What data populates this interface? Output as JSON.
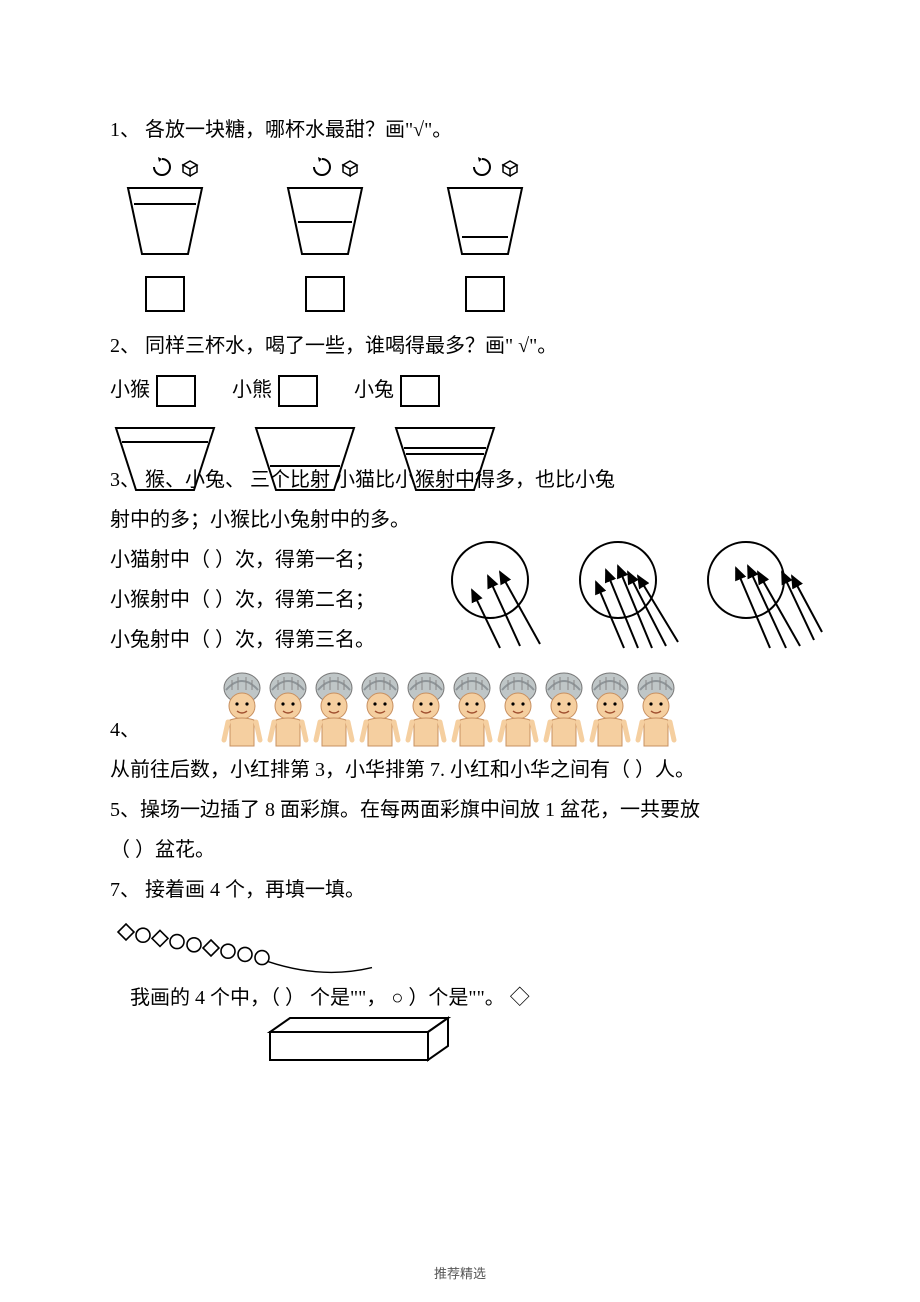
{
  "q1": {
    "text": "1、 各放一块糖，哪杯水最甜？画\"√\"。",
    "water_levels": [
      0.72,
      0.45,
      0.22
    ],
    "cup_stroke": "#000000",
    "cup_fill": "#ffffff"
  },
  "q2": {
    "text": "2、 同样三杯水，喝了一些，谁喝得最多？画\" √\"。",
    "labels": [
      "小猴",
      "小熊",
      "小兔"
    ],
    "water_levels": [
      0.78,
      0.38,
      0.62
    ]
  },
  "q3": {
    "text_a": "3、    猴、小兔、      三个比射      小猫比小猴射中得多，也比小兔",
    "text_b": "射中的多；小猴比小兔射中的多。",
    "line1": "小猫射中（    ）次，得第一名；",
    "line2": "小猴射中（    ）次，得第二名；",
    "line3": "小兔射中（    ）次，得第三名。",
    "targets": [
      {
        "arrows_in": 2,
        "arrows_out": 1
      },
      {
        "arrows_in": 4,
        "arrows_out": 1
      },
      {
        "arrows_in": 3,
        "arrows_out": 2
      }
    ]
  },
  "q4": {
    "prefix": "4、",
    "children_count": 10,
    "text": "从前往后数，小红排第 3，小华排第 7. 小红和小华之间有（      ）人。",
    "child_colors": {
      "hat": "#bfc6c7",
      "hat_band": "#8e9599",
      "face": "#f5cfa0",
      "body": "#f5cfa0",
      "cloth": "#dedede"
    }
  },
  "q5": {
    "text": "5、操场一边插了 8 面彩旗。在每两面彩旗中间放 1 盆花，一共要放",
    "text2": "（        ）盆花。"
  },
  "q7": {
    "text": "7、 接着画 4 个，再填一填。",
    "pattern": [
      "diamond",
      "circle",
      "diamond",
      "circle",
      "circle",
      "diamond",
      "circle",
      "circle",
      "circle"
    ],
    "line": "我画的 4 个中，（      ） 个是\"\"， ○   ）个是\"\"。   ◇"
  },
  "footer": "推荐精选"
}
